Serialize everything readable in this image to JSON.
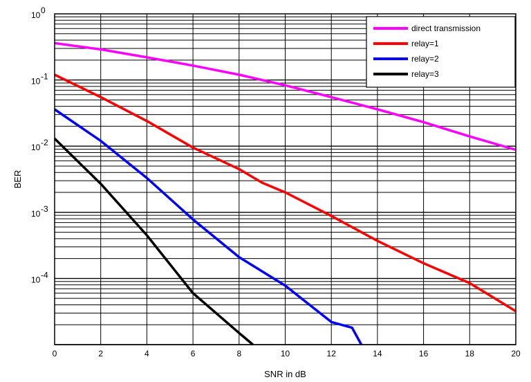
{
  "chart_data": {
    "type": "line",
    "xlabel": "SNR in dB",
    "ylabel": "BER",
    "xlim": [
      0,
      20
    ],
    "ylim": [
      1e-05,
      1
    ],
    "yscale": "log",
    "grid": true,
    "legend_position": "top-right",
    "x_ticks": [
      "0",
      "2",
      "4",
      "6",
      "8",
      "10",
      "12",
      "14",
      "16",
      "18",
      "20"
    ],
    "y_ticks": [
      {
        "base": "10",
        "exp": "0"
      },
      {
        "base": "10",
        "exp": "-1"
      },
      {
        "base": "10",
        "exp": "-2"
      },
      {
        "base": "10",
        "exp": "-3"
      },
      {
        "base": "10",
        "exp": "-4"
      }
    ],
    "series": [
      {
        "name": "direct transmission",
        "color": "#ff00ff",
        "x": [
          0,
          2,
          4,
          6,
          8,
          10,
          12,
          14,
          16,
          18,
          20
        ],
        "y": [
          0.36,
          0.29,
          0.22,
          0.165,
          0.12,
          0.083,
          0.055,
          0.036,
          0.023,
          0.014,
          0.0088
        ]
      },
      {
        "name": "relay=1",
        "color": "#ff0000",
        "x": [
          0,
          2,
          4,
          6,
          8,
          9,
          10,
          12,
          14,
          16,
          18,
          20
        ],
        "y": [
          0.12,
          0.055,
          0.024,
          0.0095,
          0.0045,
          0.0028,
          0.002,
          0.00088,
          0.00037,
          0.00017,
          8.5e-05,
          3.2e-05
        ]
      },
      {
        "name": "relay=2",
        "color": "#0000ff",
        "x": [
          0,
          2,
          4,
          6,
          8,
          10,
          12,
          12.9,
          13.3
        ],
        "y": [
          0.036,
          0.012,
          0.0033,
          0.00078,
          0.00021,
          7.8e-05,
          2.2e-05,
          1.8e-05,
          1e-05
        ]
      },
      {
        "name": "relay=3",
        "color": "#000000",
        "x": [
          0,
          2,
          4,
          6,
          8,
          8.6
        ],
        "y": [
          0.013,
          0.0027,
          0.00045,
          6e-05,
          1.5e-05,
          1e-05
        ]
      }
    ]
  }
}
